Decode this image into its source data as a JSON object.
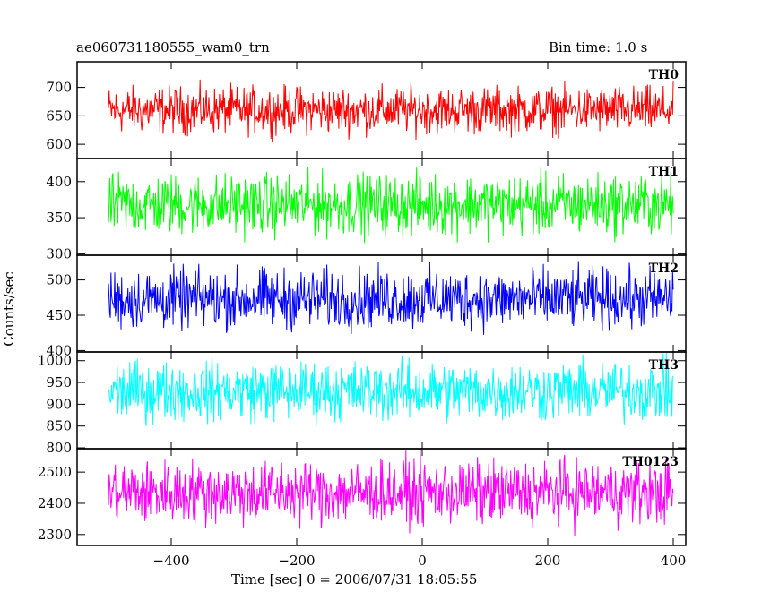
{
  "header": {
    "title": "ae060731180555_wam0_trn",
    "bin_time": "Bin time: 1.0 s"
  },
  "axes": {
    "xlabel": "Time [sec] 0 = 2006/07/31 18:05:55",
    "ylabel": "Counts/sec"
  },
  "chart_data": {
    "type": "line",
    "title": "ae060731180555_wam0_trn",
    "subtitle": "Bin time: 1.0 s",
    "xlabel": "Time [sec] 0 = 2006/07/31 18:05:55",
    "ylabel": "Counts/sec",
    "xlim": [
      -550,
      420
    ],
    "x_ticks": [
      -400,
      -200,
      0,
      200,
      400
    ],
    "x_range_data": [
      -500,
      400
    ],
    "bin_time": 1.0,
    "grid": false,
    "panels": [
      {
        "name": "TH0",
        "color": "#ff0000",
        "ylim": [
          575,
          745
        ],
        "y_ticks": [
          600,
          650,
          700
        ],
        "mean": 660,
        "spread": 60
      },
      {
        "name": "TH1",
        "color": "#00ff00",
        "ylim": [
          298,
          432
        ],
        "y_ticks": [
          300,
          350,
          400
        ],
        "mean": 368,
        "spread": 62
      },
      {
        "name": "TH2",
        "color": "#0000ff",
        "ylim": [
          398,
          535
        ],
        "y_ticks": [
          400,
          450,
          500
        ],
        "mean": 473,
        "spread": 62
      },
      {
        "name": "TH3",
        "color": "#00ffff",
        "ylim": [
          798,
          1020
        ],
        "y_ticks": [
          800,
          850,
          900,
          950,
          1000
        ],
        "mean": 930,
        "spread": 100
      },
      {
        "name": "TH0123",
        "color": "#ff00ff",
        "ylim": [
          2265,
          2575
        ],
        "y_ticks": [
          2300,
          2400,
          2500
        ],
        "mean": 2435,
        "spread": 150
      }
    ]
  }
}
